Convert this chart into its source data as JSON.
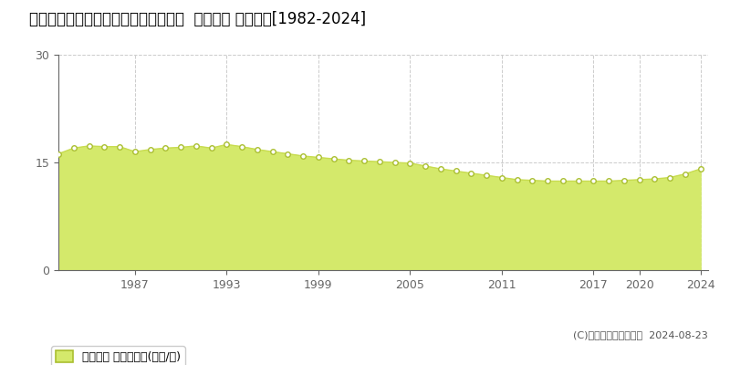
{
  "title": "北海道帯広市東３条南７丁目６番２外  地価公示 地価推移[1982-2024]",
  "years": [
    1982,
    1983,
    1984,
    1985,
    1986,
    1987,
    1988,
    1989,
    1990,
    1991,
    1992,
    1993,
    1994,
    1995,
    1996,
    1997,
    1998,
    1999,
    2000,
    2001,
    2002,
    2003,
    2004,
    2005,
    2006,
    2007,
    2008,
    2009,
    2010,
    2011,
    2012,
    2013,
    2014,
    2015,
    2016,
    2017,
    2018,
    2019,
    2020,
    2021,
    2022,
    2023,
    2024
  ],
  "values": [
    16.2,
    17.0,
    17.3,
    17.2,
    17.2,
    16.5,
    16.8,
    17.0,
    17.1,
    17.3,
    17.0,
    17.5,
    17.2,
    16.8,
    16.5,
    16.2,
    15.9,
    15.7,
    15.5,
    15.3,
    15.2,
    15.1,
    15.0,
    14.9,
    14.5,
    14.1,
    13.8,
    13.5,
    13.2,
    12.9,
    12.6,
    12.5,
    12.4,
    12.4,
    12.4,
    12.4,
    12.4,
    12.5,
    12.6,
    12.7,
    12.9,
    13.4,
    14.1
  ],
  "fill_color": "#d4e96b",
  "line_color": "#c8dc50",
  "marker_facecolor": "#ffffff",
  "marker_edgecolor": "#aabf30",
  "bg_color": "#ffffff",
  "plot_bg_color": "#ffffff",
  "grid_color": "#cccccc",
  "spine_color": "#666666",
  "ylim": [
    0,
    30
  ],
  "yticks": [
    0,
    15,
    30
  ],
  "xticks": [
    1987,
    1993,
    1999,
    2005,
    2011,
    2017,
    2020,
    2024
  ],
  "xticklabels": [
    "1987",
    "1993",
    "1999",
    "2005",
    "2011",
    "2017",
    "2020",
    "2024"
  ],
  "legend_label": "地価公示 平均坪単価(万円/坪)",
  "copyright_text": "(C)土地価格ドットコム  2024-08-23",
  "title_fontsize": 12,
  "tick_fontsize": 9,
  "legend_fontsize": 9,
  "copyright_fontsize": 8
}
